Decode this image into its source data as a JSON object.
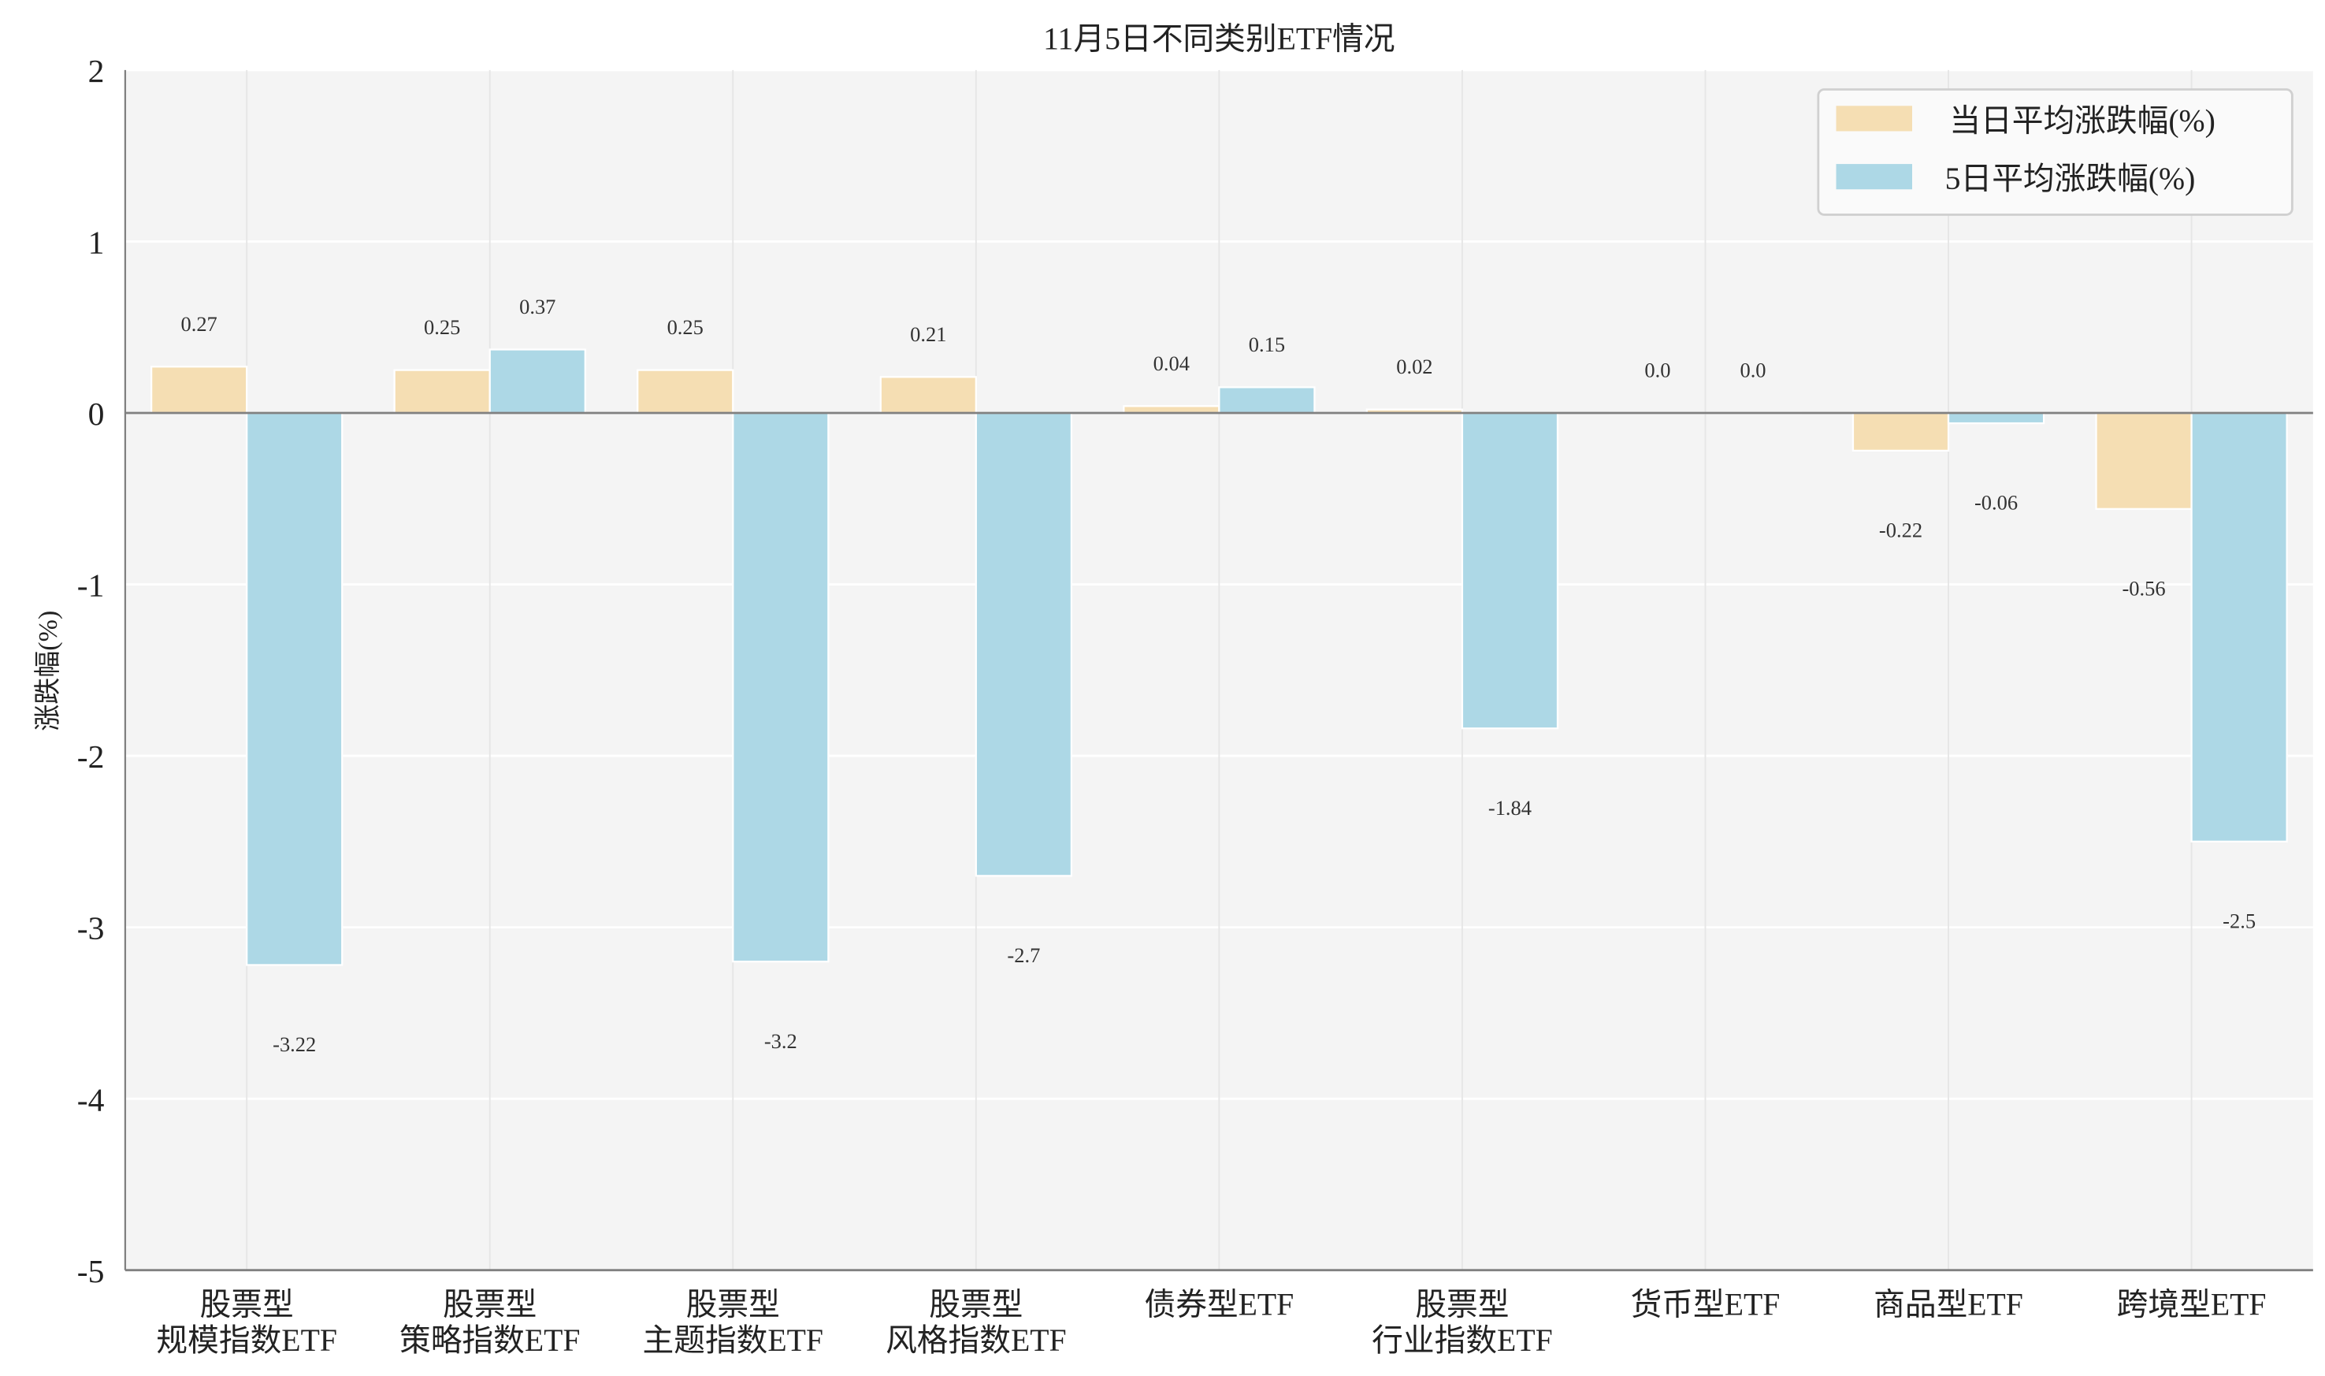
{
  "chart_data": {
    "type": "bar",
    "title": "11月5日不同类别ETF情况",
    "xlabel": "",
    "ylabel": "涨跌幅(%)",
    "ylim": [
      -5,
      2
    ],
    "yticks": [
      2,
      1,
      0,
      -1,
      -2,
      -3,
      -4,
      -5
    ],
    "grid": true,
    "legend_placement": "top-right",
    "categories": [
      [
        "股票型",
        "规模指数ETF"
      ],
      [
        "股票型",
        "策略指数ETF"
      ],
      [
        "股票型",
        "主题指数ETF"
      ],
      [
        "股票型",
        "风格指数ETF"
      ],
      [
        "债券型ETF"
      ],
      [
        "股票型",
        "行业指数ETF"
      ],
      [
        "货币型ETF"
      ],
      [
        "商品型ETF"
      ],
      [
        "跨境型ETF"
      ]
    ],
    "series": [
      {
        "name": "当日平均涨跌幅(%)",
        "color": "#f5deb3",
        "values": [
          0.27,
          0.25,
          0.25,
          0.21,
          0.04,
          0.02,
          0.0,
          -0.22,
          -0.56
        ],
        "labels": [
          "0.27",
          "0.25",
          "0.25",
          "0.21",
          "0.04",
          "0.02",
          "0.0",
          "-0.22",
          "-0.56"
        ]
      },
      {
        "name": "5日平均涨跌幅(%)",
        "color": "#add8e6",
        "values": [
          -3.22,
          0.37,
          -3.2,
          -2.7,
          0.15,
          -1.84,
          0.0,
          -0.06,
          -2.5
        ],
        "labels": [
          "-3.22",
          "0.37",
          "-3.2",
          "-2.7",
          "0.15",
          "-1.84",
          "0.0",
          "-0.06",
          "-2.5"
        ]
      }
    ]
  }
}
